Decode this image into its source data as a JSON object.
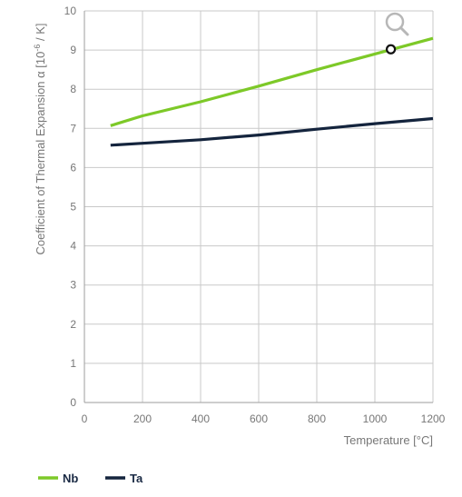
{
  "chart_data": {
    "type": "line",
    "xlabel": "Temperature [°C]",
    "ylabel_main": "Coefficient of Thermal Expansion α [10",
    "ylabel_sup": "-6",
    "ylabel_tail": " / K]",
    "xlim": [
      0,
      1200
    ],
    "ylim": [
      0,
      10
    ],
    "x_ticks": [
      "0",
      "200",
      "400",
      "600",
      "800",
      "1000",
      "1200"
    ],
    "y_ticks": [
      "0",
      "1",
      "2",
      "3",
      "4",
      "5",
      "6",
      "7",
      "8",
      "9",
      "10"
    ],
    "grid": true,
    "legend_position": "bottom-left",
    "series": [
      {
        "name": "Nb",
        "color": "#7dc928",
        "x": [
          90,
          200,
          400,
          600,
          800,
          1000,
          1200
        ],
        "y": [
          7.07,
          7.32,
          7.68,
          8.08,
          8.5,
          8.9,
          9.3
        ]
      },
      {
        "name": "Ta",
        "color": "#14243d",
        "x": [
          90,
          200,
          400,
          600,
          800,
          1000,
          1200
        ],
        "y": [
          6.57,
          6.62,
          6.71,
          6.83,
          6.98,
          7.12,
          7.25
        ]
      }
    ],
    "marker": {
      "x": 1055,
      "y": 9.02
    },
    "zoom_icon": "magnifier-icon"
  }
}
